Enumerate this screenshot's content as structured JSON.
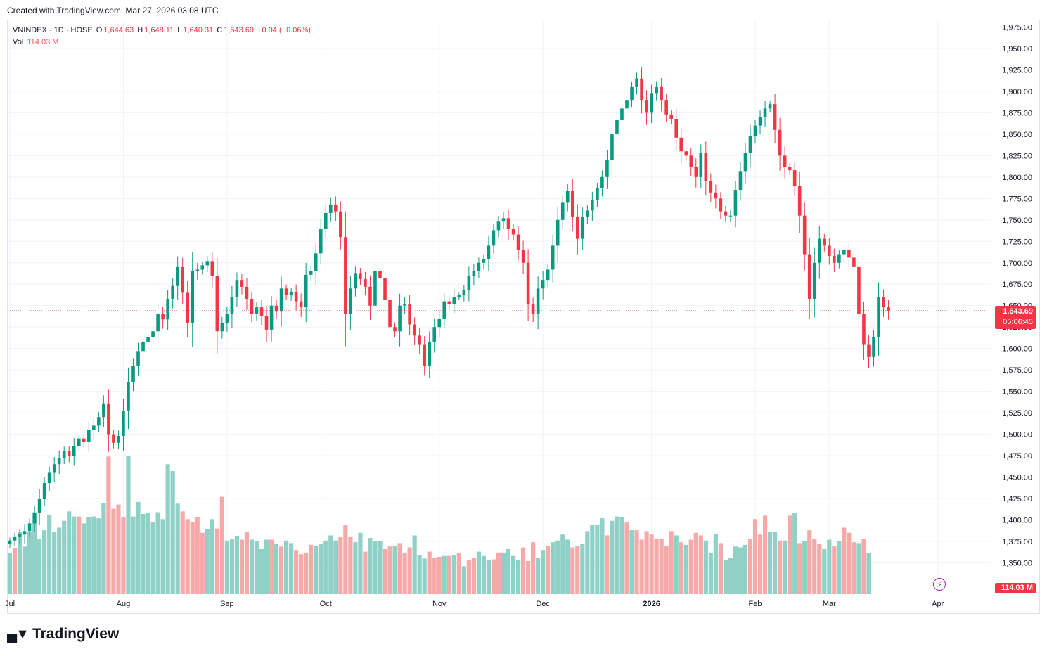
{
  "header": {
    "created": "Created with TradingView.com, Mar 27, 2026 03:08 UTC"
  },
  "legend": {
    "symbol": "VNINDEX · 1D · HOSE",
    "o_label": "O",
    "o_value": "1,644.63",
    "h_label": "H",
    "h_value": "1,648.11",
    "l_label": "L",
    "l_value": "1,640.31",
    "c_label": "C",
    "c_value": "1,643.69",
    "change": "−0.94 (−0.06%)",
    "vol_label": "Vol",
    "vol_value": "114.03 M"
  },
  "tags": {
    "price": "1,643.69",
    "countdown": "05:06:45",
    "volume": "114.03 M"
  },
  "brand": {
    "name": "TradingView"
  },
  "colors": {
    "up": "#089981",
    "down": "#f23645",
    "vol_up": "#8fd1c6",
    "vol_down": "#f7a9a9",
    "grid": "#f0f3fa"
  },
  "chart_data": {
    "type": "candlestick",
    "title": "VNINDEX · 1D · HOSE",
    "ylim": [
      1330,
      1985
    ],
    "y_ticks": [
      "1,350.00",
      "1,375.00",
      "1,400.00",
      "1,425.00",
      "1,450.00",
      "1,475.00",
      "1,500.00",
      "1,525.00",
      "1,550.00",
      "1,575.00",
      "1,600.00",
      "1,625.00",
      "1,650.00",
      "1,675.00",
      "1,700.00",
      "1,725.00",
      "1,750.00",
      "1,775.00",
      "1,800.00",
      "1,825.00",
      "1,850.00",
      "1,875.00",
      "1,900.00",
      "1,925.00",
      "1,950.00",
      "1,975.00"
    ],
    "x_labels": [
      {
        "label": "Jul",
        "bar": 0
      },
      {
        "label": "Aug",
        "bar": 23
      },
      {
        "label": "Sep",
        "bar": 44
      },
      {
        "label": "Oct",
        "bar": 64
      },
      {
        "label": "Nov",
        "bar": 87
      },
      {
        "label": "Dec",
        "bar": 108
      },
      {
        "label": "2026",
        "bar": 130
      },
      {
        "label": "Feb",
        "bar": 151
      },
      {
        "label": "Mar",
        "bar": 166
      },
      {
        "label": "Apr",
        "bar": 188
      }
    ],
    "closes": [
      1376,
      1380,
      1383,
      1387,
      1396,
      1408,
      1425,
      1443,
      1455,
      1465,
      1472,
      1480,
      1475,
      1486,
      1495,
      1491,
      1505,
      1510,
      1520,
      1536,
      1500,
      1490,
      1498,
      1527,
      1561,
      1580,
      1597,
      1608,
      1613,
      1620,
      1640,
      1634,
      1658,
      1673,
      1695,
      1665,
      1630,
      1690,
      1692,
      1697,
      1702,
      1685,
      1620,
      1630,
      1640,
      1660,
      1680,
      1672,
      1658,
      1640,
      1648,
      1638,
      1622,
      1650,
      1643,
      1670,
      1662,
      1666,
      1655,
      1648,
      1686,
      1690,
      1711,
      1740,
      1758,
      1768,
      1760,
      1730,
      1640,
      1670,
      1688,
      1681,
      1672,
      1650,
      1690,
      1682,
      1657,
      1625,
      1620,
      1650,
      1652,
      1628,
      1615,
      1605,
      1580,
      1608,
      1625,
      1635,
      1655,
      1652,
      1660,
      1662,
      1668,
      1685,
      1690,
      1700,
      1704,
      1720,
      1738,
      1748,
      1752,
      1740,
      1733,
      1715,
      1700,
      1652,
      1640,
      1670,
      1680,
      1692,
      1720,
      1750,
      1770,
      1784,
      1754,
      1728,
      1754,
      1761,
      1773,
      1787,
      1800,
      1820,
      1850,
      1867,
      1880,
      1890,
      1905,
      1915,
      1890,
      1875,
      1898,
      1905,
      1890,
      1873,
      1868,
      1846,
      1830,
      1825,
      1812,
      1800,
      1828,
      1795,
      1782,
      1775,
      1760,
      1755,
      1755,
      1785,
      1807,
      1828,
      1848,
      1860,
      1870,
      1880,
      1885,
      1855,
      1825,
      1812,
      1808,
      1790,
      1755,
      1710,
      1658,
      1700,
      1728,
      1720,
      1708,
      1700,
      1710,
      1715,
      1706,
      1695,
      1640,
      1605,
      1590,
      1613,
      1660,
      1648,
      1644
    ],
    "volumes": [
      [
        1361,
        "up"
      ],
      [
        1367,
        "down"
      ],
      [
        1386,
        "up"
      ],
      [
        1369,
        "up"
      ],
      [
        1386,
        "up"
      ],
      [
        1409,
        "up"
      ],
      [
        1378,
        "up"
      ],
      [
        1388,
        "up"
      ],
      [
        1406,
        "up"
      ],
      [
        1386,
        "up"
      ],
      [
        1391,
        "up"
      ],
      [
        1399,
        "up"
      ],
      [
        1410,
        "up"
      ],
      [
        1404,
        "up"
      ],
      [
        1404,
        "down"
      ],
      [
        1396,
        "up"
      ],
      [
        1403,
        "up"
      ],
      [
        1404,
        "up"
      ],
      [
        1402,
        "up"
      ],
      [
        1420,
        "up"
      ],
      [
        1474,
        "down"
      ],
      [
        1413,
        "down"
      ],
      [
        1418,
        "down"
      ],
      [
        1403,
        "down"
      ],
      [
        1475,
        "up"
      ],
      [
        1404,
        "up"
      ],
      [
        1421,
        "up"
      ],
      [
        1407,
        "up"
      ],
      [
        1408,
        "up"
      ],
      [
        1398,
        "up"
      ],
      [
        1409,
        "up"
      ],
      [
        1401,
        "up"
      ],
      [
        1465,
        "up"
      ],
      [
        1457,
        "up"
      ],
      [
        1419,
        "up"
      ],
      [
        1410,
        "down"
      ],
      [
        1401,
        "down"
      ],
      [
        1398,
        "down"
      ],
      [
        1403,
        "down"
      ],
      [
        1385,
        "down"
      ],
      [
        1389,
        "up"
      ],
      [
        1401,
        "up"
      ],
      [
        1390,
        "down"
      ],
      [
        1427,
        "down"
      ],
      [
        1376,
        "up"
      ],
      [
        1378,
        "up"
      ],
      [
        1381,
        "up"
      ],
      [
        1377,
        "down"
      ],
      [
        1386,
        "down"
      ],
      [
        1377,
        "up"
      ],
      [
        1375,
        "up"
      ],
      [
        1366,
        "up"
      ],
      [
        1377,
        "up"
      ],
      [
        1377,
        "down"
      ],
      [
        1372,
        "up"
      ],
      [
        1369,
        "down"
      ],
      [
        1376,
        "up"
      ],
      [
        1373,
        "up"
      ],
      [
        1365,
        "down"
      ],
      [
        1360,
        "down"
      ],
      [
        1362,
        "down"
      ],
      [
        1371,
        "down"
      ],
      [
        1370,
        "up"
      ],
      [
        1372,
        "up"
      ],
      [
        1376,
        "up"
      ],
      [
        1382,
        "up"
      ],
      [
        1376,
        "up"
      ],
      [
        1380,
        "down"
      ],
      [
        1394,
        "down"
      ],
      [
        1380,
        "down"
      ],
      [
        1374,
        "up"
      ],
      [
        1385,
        "up"
      ],
      [
        1363,
        "down"
      ],
      [
        1379,
        "up"
      ],
      [
        1375,
        "up"
      ],
      [
        1375,
        "up"
      ],
      [
        1366,
        "down"
      ],
      [
        1369,
        "down"
      ],
      [
        1370,
        "up"
      ],
      [
        1373,
        "down"
      ],
      [
        1362,
        "down"
      ],
      [
        1368,
        "down"
      ],
      [
        1382,
        "up"
      ],
      [
        1359,
        "up"
      ],
      [
        1355,
        "up"
      ],
      [
        1363,
        "down"
      ],
      [
        1356,
        "down"
      ],
      [
        1357,
        "down"
      ],
      [
        1358,
        "up"
      ],
      [
        1358,
        "down"
      ],
      [
        1359,
        "up"
      ],
      [
        1361,
        "down"
      ],
      [
        1346,
        "up"
      ],
      [
        1353,
        "down"
      ],
      [
        1356,
        "down"
      ],
      [
        1363,
        "up"
      ],
      [
        1358,
        "up"
      ],
      [
        1353,
        "up"
      ],
      [
        1354,
        "down"
      ],
      [
        1362,
        "down"
      ],
      [
        1362,
        "up"
      ],
      [
        1366,
        "up"
      ],
      [
        1358,
        "up"
      ],
      [
        1353,
        "up"
      ],
      [
        1368,
        "down"
      ],
      [
        1352,
        "down"
      ],
      [
        1374,
        "down"
      ],
      [
        1356,
        "up"
      ],
      [
        1365,
        "up"
      ],
      [
        1370,
        "down"
      ],
      [
        1374,
        "up"
      ],
      [
        1376,
        "up"
      ],
      [
        1383,
        "up"
      ],
      [
        1377,
        "up"
      ],
      [
        1368,
        "down"
      ],
      [
        1370,
        "down"
      ],
      [
        1372,
        "up"
      ],
      [
        1387,
        "up"
      ],
      [
        1394,
        "up"
      ],
      [
        1394,
        "up"
      ],
      [
        1402,
        "up"
      ],
      [
        1382,
        "down"
      ],
      [
        1399,
        "up"
      ],
      [
        1404,
        "up"
      ],
      [
        1403,
        "up"
      ],
      [
        1397,
        "down"
      ],
      [
        1388,
        "up"
      ],
      [
        1388,
        "down"
      ],
      [
        1377,
        "down"
      ],
      [
        1387,
        "down"
      ],
      [
        1383,
        "down"
      ],
      [
        1378,
        "down"
      ],
      [
        1378,
        "down"
      ],
      [
        1370,
        "down"
      ],
      [
        1387,
        "down"
      ],
      [
        1382,
        "up"
      ],
      [
        1374,
        "down"
      ],
      [
        1371,
        "up"
      ],
      [
        1377,
        "down"
      ],
      [
        1385,
        "down"
      ],
      [
        1382,
        "down"
      ],
      [
        1376,
        "up"
      ],
      [
        1362,
        "up"
      ],
      [
        1384,
        "up"
      ],
      [
        1373,
        "down"
      ],
      [
        1353,
        "up"
      ],
      [
        1356,
        "up"
      ],
      [
        1369,
        "up"
      ],
      [
        1368,
        "up"
      ],
      [
        1371,
        "up"
      ],
      [
        1378,
        "down"
      ],
      [
        1401,
        "down"
      ],
      [
        1383,
        "down"
      ],
      [
        1405,
        "down"
      ],
      [
        1386,
        "up"
      ],
      [
        1386,
        "up"
      ],
      [
        1376,
        "down"
      ],
      [
        1376,
        "up"
      ],
      [
        1405,
        "down"
      ],
      [
        1408,
        "up"
      ],
      [
        1373,
        "down"
      ],
      [
        1375,
        "up"
      ],
      [
        1388,
        "down"
      ],
      [
        1378,
        "down"
      ],
      [
        1372,
        "down"
      ],
      [
        1366,
        "up"
      ],
      [
        1377,
        "up"
      ],
      [
        1370,
        "down"
      ],
      [
        1375,
        "up"
      ],
      [
        1391,
        "down"
      ],
      [
        1385,
        "down"
      ],
      [
        1374,
        "down"
      ],
      [
        1373,
        "up"
      ],
      [
        1378,
        "down"
      ],
      [
        1361,
        "up"
      ]
    ]
  }
}
